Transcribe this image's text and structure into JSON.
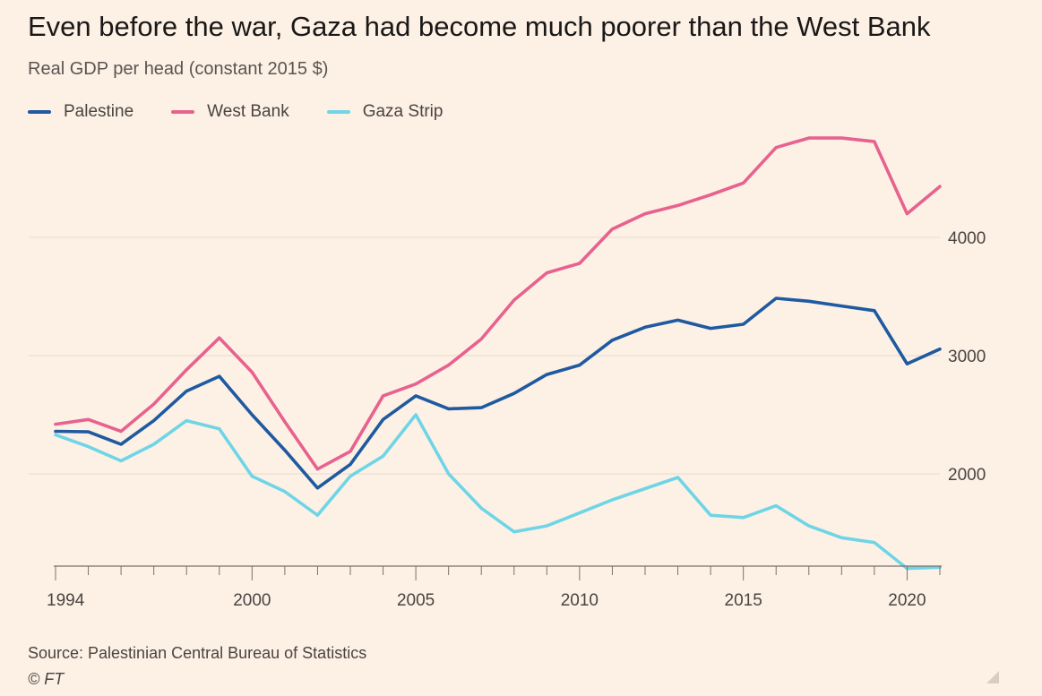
{
  "header": {
    "title": "Even before the war, Gaza had become much poorer than the West Bank",
    "subtitle": "Real GDP per head (constant 2015 $)"
  },
  "legend": [
    {
      "label": "Palestine",
      "color": "#1f5aa0"
    },
    {
      "label": "West Bank",
      "color": "#e7628e"
    },
    {
      "label": "Gaza Strip",
      "color": "#6fd5e6"
    }
  ],
  "footer": {
    "source": "Source: Palestinian Central Bureau of Statistics",
    "credit": "© FT"
  },
  "chart_data": {
    "type": "line",
    "title": "Even before the war, Gaza had become much poorer than the West Bank",
    "subtitle": "Real GDP per head (constant 2015 $)",
    "xlabel": "",
    "ylabel": "",
    "x": [
      1994,
      1995,
      1996,
      1997,
      1998,
      1999,
      2000,
      2001,
      2002,
      2003,
      2004,
      2005,
      2006,
      2007,
      2008,
      2009,
      2010,
      2011,
      2012,
      2013,
      2014,
      2015,
      2016,
      2017,
      2018,
      2019,
      2020,
      2021
    ],
    "x_ticks": [
      1994,
      2000,
      2005,
      2010,
      2015,
      2020
    ],
    "y_ticks": [
      2000,
      3000,
      4000
    ],
    "xlim": [
      1994,
      2021
    ],
    "ylim": [
      1200,
      4900
    ],
    "grid": true,
    "legend_position": "top-left",
    "series": [
      {
        "name": "Palestine",
        "color": "#1f5aa0",
        "values": [
          2360,
          2355,
          2250,
          2450,
          2700,
          2825,
          2500,
          2200,
          1880,
          2080,
          2460,
          2660,
          2550,
          2560,
          2680,
          2840,
          2920,
          3130,
          3240,
          3300,
          3230,
          3265,
          3485,
          3460,
          3420,
          3380,
          2930,
          3055
        ]
      },
      {
        "name": "West Bank",
        "color": "#e7628e",
        "values": [
          2420,
          2460,
          2360,
          2590,
          2880,
          3150,
          2860,
          2440,
          2040,
          2190,
          2660,
          2760,
          2920,
          3140,
          3470,
          3700,
          3780,
          4070,
          4200,
          4270,
          4360,
          4460,
          4760,
          4840,
          4840,
          4810,
          4200,
          4430
        ]
      },
      {
        "name": "Gaza Strip",
        "color": "#6fd5e6",
        "values": [
          2330,
          2230,
          2110,
          2250,
          2450,
          2380,
          1980,
          1850,
          1650,
          1980,
          2150,
          2500,
          2000,
          1710,
          1510,
          1560,
          1670,
          1780,
          1875,
          1970,
          1650,
          1630,
          1730,
          1560,
          1460,
          1420,
          1200,
          1210
        ]
      }
    ]
  }
}
